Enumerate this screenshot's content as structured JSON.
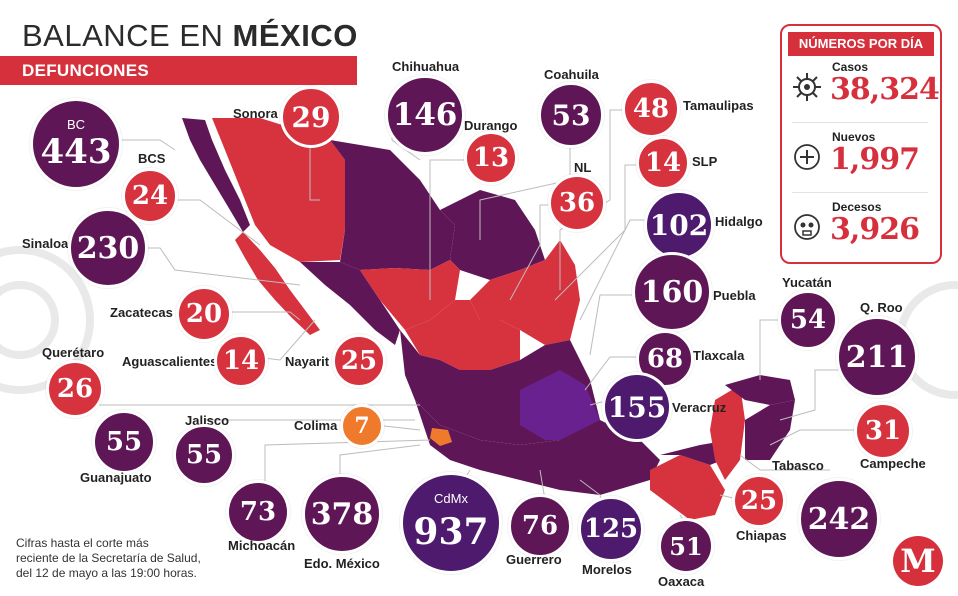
{
  "header": {
    "title_light": "BALANCE EN ",
    "title_bold": "MÉXICO",
    "subtitle": "DEFUNCIONES"
  },
  "panel": {
    "title": "NÚMEROS POR DÍA",
    "casos": {
      "label": "Casos",
      "value": "38,324",
      "icon": "virus-icon"
    },
    "nuevos": {
      "label": "Nuevos",
      "value": "1,997",
      "icon": "plus-circle-icon"
    },
    "decesos": {
      "label": "Decesos",
      "value": "3,926",
      "icon": "skull-icon"
    }
  },
  "states": [
    {
      "id": "bc",
      "name": "BC",
      "value": "443",
      "color": "#5f1657"
    },
    {
      "id": "sonora",
      "name": "Sonora",
      "value": "29",
      "color": "#d7333f"
    },
    {
      "id": "chihuahua",
      "name": "Chihuahua",
      "value": "146",
      "color": "#5f1657"
    },
    {
      "id": "coahuila",
      "name": "Coahuila",
      "value": "53",
      "color": "#5f1657"
    },
    {
      "id": "tamaulipas",
      "name": "Tamaulipas",
      "value": "48",
      "color": "#d7333f"
    },
    {
      "id": "durango",
      "name": "Durango",
      "value": "13",
      "color": "#d7333f"
    },
    {
      "id": "bcs",
      "name": "BCS",
      "value": "24",
      "color": "#d7333f"
    },
    {
      "id": "nl",
      "name": "NL",
      "value": "36",
      "color": "#d7333f"
    },
    {
      "id": "slp",
      "name": "SLP",
      "value": "14",
      "color": "#d7333f"
    },
    {
      "id": "sinaloa",
      "name": "Sinaloa",
      "value": "230",
      "color": "#5f1657"
    },
    {
      "id": "hidalgo",
      "name": "Hidalgo",
      "value": "102",
      "color": "#4d1a6e"
    },
    {
      "id": "puebla",
      "name": "Puebla",
      "value": "160",
      "color": "#5f1657"
    },
    {
      "id": "zacatecas",
      "name": "Zacatecas",
      "value": "20",
      "color": "#d7333f"
    },
    {
      "id": "aguascalientes",
      "name": "Aguascalientes",
      "value": "14",
      "color": "#d7333f"
    },
    {
      "id": "nayarit",
      "name": "Nayarit",
      "value": "25",
      "color": "#d7333f"
    },
    {
      "id": "queretaro",
      "name": "Querétaro",
      "value": "26",
      "color": "#d7333f"
    },
    {
      "id": "tlaxcala",
      "name": "Tlaxcala",
      "value": "68",
      "color": "#5f1657"
    },
    {
      "id": "yucatan",
      "name": "Yucatán",
      "value": "54",
      "color": "#5f1657"
    },
    {
      "id": "qroo",
      "name": "Q. Roo",
      "value": "211",
      "color": "#5f1657"
    },
    {
      "id": "veracruz",
      "name": "Veracruz",
      "value": "155",
      "color": "#4d1a6e"
    },
    {
      "id": "guanajuato",
      "name": "Guanajuato",
      "value": "55",
      "color": "#5f1657"
    },
    {
      "id": "jalisco",
      "name": "Jalisco",
      "value": "55",
      "color": "#5f1657"
    },
    {
      "id": "colima",
      "name": "Colima",
      "value": "7",
      "color": "#f07a2c"
    },
    {
      "id": "campeche",
      "name": "Campeche",
      "value": "31",
      "color": "#d7333f"
    },
    {
      "id": "tabasco",
      "name": "Tabasco",
      "value": "242",
      "color": "#5f1657"
    },
    {
      "id": "michoacan",
      "name": "Michoacán",
      "value": "73",
      "color": "#5f1657"
    },
    {
      "id": "edomex",
      "name": "Edo. México",
      "value": "378",
      "color": "#5f1657"
    },
    {
      "id": "cdmx",
      "name": "CdMx",
      "value": "937",
      "color": "#4d1a6e"
    },
    {
      "id": "guerrero",
      "name": "Guerrero",
      "value": "76",
      "color": "#5f1657"
    },
    {
      "id": "morelos",
      "name": "Morelos",
      "value": "125",
      "color": "#4d1a6e"
    },
    {
      "id": "oaxaca",
      "name": "Oaxaca",
      "value": "51",
      "color": "#5f1657"
    },
    {
      "id": "chiapas",
      "name": "Chiapas",
      "value": "25",
      "color": "#d7333f"
    }
  ],
  "footnote": [
    "Cifras hasta el corte más",
    "reciente de la Secretaría de Salud,",
    "del 12 de mayo a las 19:00 horas."
  ],
  "logo": {
    "letter": "M"
  }
}
